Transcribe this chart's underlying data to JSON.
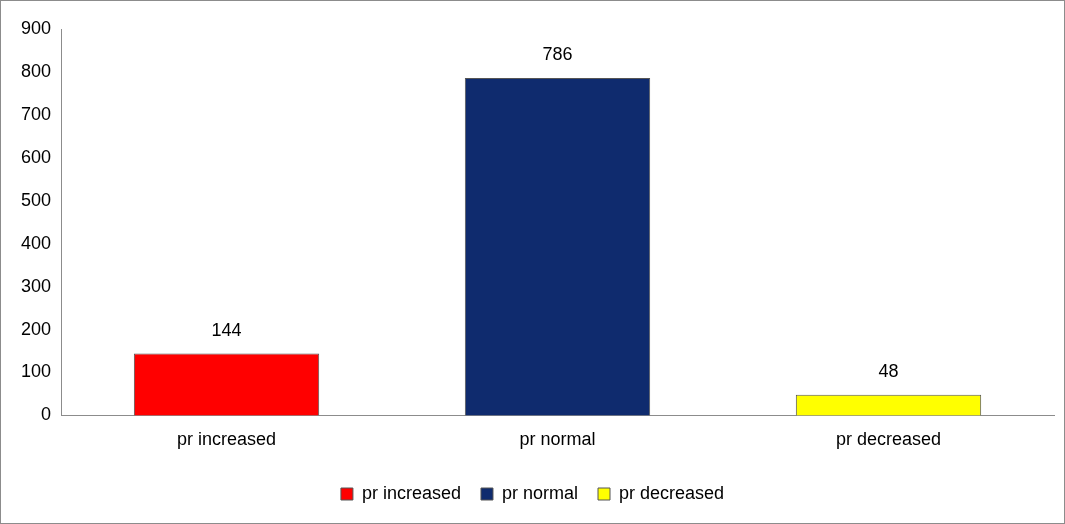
{
  "chart_data": {
    "type": "bar",
    "categories": [
      "pr increased",
      "pr normal",
      "pr decreased"
    ],
    "series": [
      {
        "name": "pr increased",
        "color": "#ff0000",
        "values": [
          144,
          null,
          null
        ]
      },
      {
        "name": "pr normal",
        "color": "#0f2b6e",
        "values": [
          null,
          786,
          null
        ]
      },
      {
        "name": "pr decreased",
        "color": "#ffff00",
        "values": [
          null,
          null,
          48
        ]
      }
    ],
    "ylim": [
      0,
      900
    ],
    "yticks": [
      0,
      100,
      200,
      300,
      400,
      500,
      600,
      700,
      800,
      900
    ],
    "grid": false,
    "legend": "bottom",
    "data_labels": true
  }
}
